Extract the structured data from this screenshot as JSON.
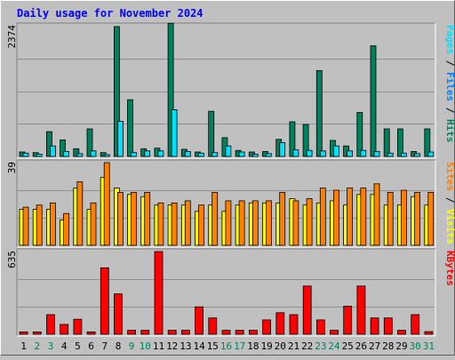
{
  "chart_data": {
    "type": "bar",
    "title": "Daily usage for November 2024",
    "colors": {
      "background": "#c0c0c0",
      "title": "#0000ff",
      "hits": "#00805c",
      "files": "#0080ff",
      "pages": "#00e0ff",
      "visits": "#ffff00",
      "sites": "#ff8000",
      "kbytes": "#ff0000",
      "weekend_label": "#00805c",
      "weekday_label": "#000000"
    },
    "days": [
      "1",
      "2",
      "3",
      "4",
      "5",
      "6",
      "7",
      "8",
      "9",
      "10",
      "11",
      "12",
      "13",
      "14",
      "15",
      "16",
      "17",
      "18",
      "19",
      "20",
      "21",
      "22",
      "23",
      "24",
      "25",
      "26",
      "27",
      "28",
      "29",
      "30",
      "31"
    ],
    "weekend_days": [
      2,
      3,
      9,
      10,
      16,
      17,
      23,
      24,
      30,
      31
    ],
    "panels": [
      {
        "id": "hits-files-pages",
        "max_label": "2374",
        "ymax": 2374,
        "legend": [
          {
            "text": "Pages",
            "color": "#00e0ff"
          },
          {
            "text": " / ",
            "color": "#000000"
          },
          {
            "text": "Files",
            "color": "#0080ff"
          },
          {
            "text": " / ",
            "color": "#000000"
          },
          {
            "text": "Hits",
            "color": "#00805c"
          }
        ],
        "series": [
          {
            "name": "Hits",
            "color": "#00805c",
            "values": [
              80,
              70,
              450,
              300,
              140,
              500,
              70,
              2360,
              1030,
              140,
              150,
              2420,
              130,
              80,
              820,
              340,
              110,
              80,
              90,
              310,
              630,
              580,
              1560,
              290,
              190,
              800,
              2010,
              500,
              500,
              90,
              500
            ]
          },
          {
            "name": "Pages",
            "color": "#00e0ff",
            "values": [
              60,
              40,
              190,
              90,
              50,
              100,
              30,
              640,
              70,
              100,
              100,
              850,
              90,
              60,
              70,
              190,
              80,
              40,
              50,
              250,
              120,
              110,
              100,
              190,
              100,
              110,
              90,
              60,
              60,
              50,
              80
            ]
          }
        ]
      },
      {
        "id": "visits-sites",
        "max_label": "39",
        "ymax": 39,
        "legend": [
          {
            "text": "Sites",
            "color": "#ff8000"
          },
          {
            "text": " / ",
            "color": "#000000"
          },
          {
            "text": "Visits",
            "color": "#ffff00"
          }
        ],
        "series": [
          {
            "name": "Visits",
            "color": "#ffff00",
            "values": [
              17,
              17,
              17,
              12,
              27,
              17,
              32,
              27,
              24,
              23,
              19,
              19,
              19,
              16,
              19,
              16,
              19,
              20,
              20,
              20,
              22,
              19,
              20,
              21,
              19,
              24,
              24,
              19,
              19,
              23,
              19
            ]
          },
          {
            "name": "Sites",
            "color": "#ff8000",
            "values": [
              18,
              19,
              20,
              15,
              30,
              20,
              39,
              25,
              25,
              25,
              20,
              20,
              21,
              19,
              25,
              21,
              21,
              21,
              21,
              25,
              21,
              22,
              27,
              26,
              27,
              27,
              29,
              25,
              26,
              25,
              25
            ]
          }
        ]
      },
      {
        "id": "kbytes",
        "max_label": "635",
        "ymax": 635,
        "legend": [
          {
            "text": "KBytes",
            "color": "#ff0000"
          }
        ],
        "series": [
          {
            "name": "KBytes",
            "color": "#ff0000",
            "values": [
              18,
              18,
              150,
              75,
              115,
              18,
              510,
              310,
              30,
              30,
              635,
              30,
              30,
              210,
              125,
              30,
              30,
              30,
              110,
              165,
              150,
              370,
              110,
              30,
              215,
              370,
              125,
              125,
              30,
              150,
              20
            ]
          }
        ]
      }
    ]
  }
}
